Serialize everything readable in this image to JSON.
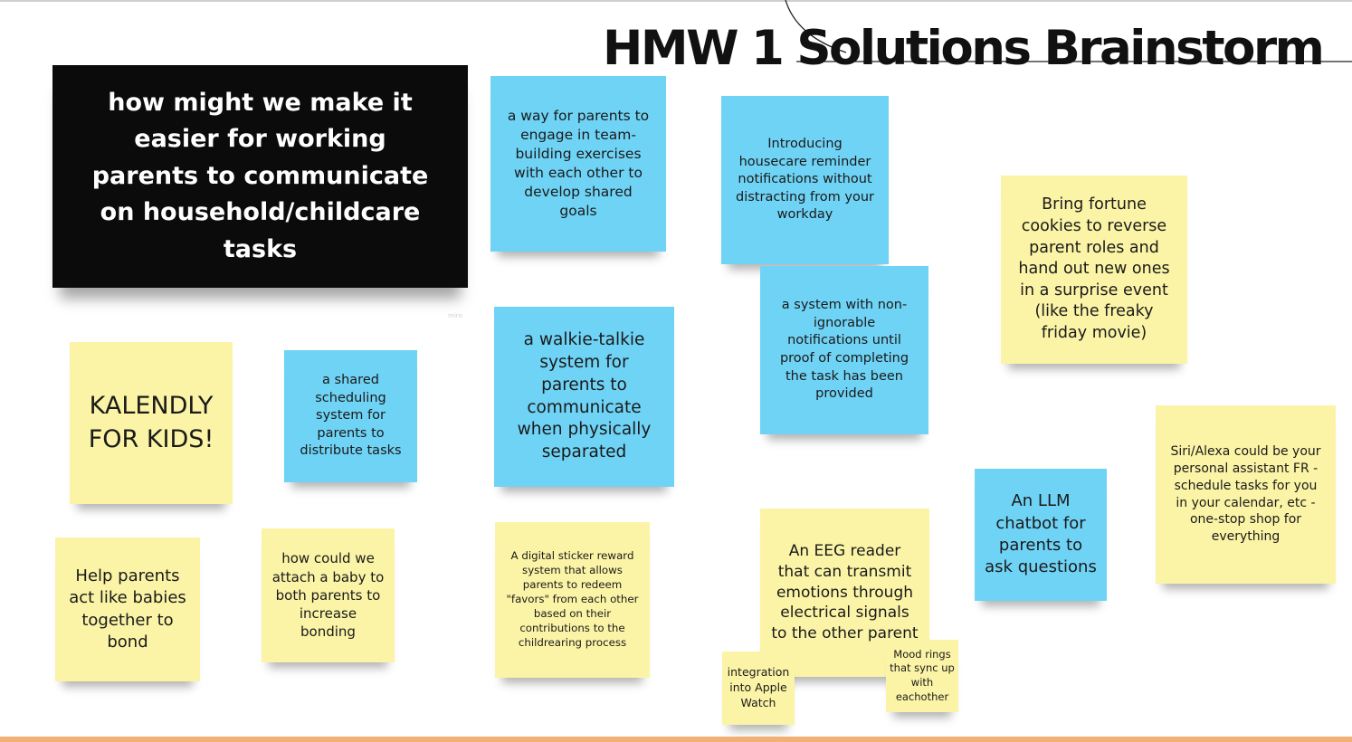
{
  "board": {
    "title": "HMW 1 Solutions Brainstorm",
    "watermark": "miro",
    "colors": {
      "yellow_note": "#fbf4a6",
      "blue_note": "#6fd3f5",
      "prompt_card": "#0b0b0b",
      "accent_bar": "#f2b173"
    }
  },
  "prompt": "how might we make it easier for working parents to communicate on household/childcare tasks",
  "notes": {
    "team_building": "a way for parents to engage in team-building exercises with each other to develop shared goals",
    "housecare_reminders": "Introducing housecare reminder notifications without distracting from your workday",
    "fortune_cookies": "Bring fortune cookies to reverse parent roles and hand out new ones in a surprise event (like the freaky friday movie)",
    "non_ignorable": "a system with non-ignorable notifications until proof of completing the task has been provided",
    "kalendly": "KALENDLY FOR KIDS!",
    "shared_scheduling": "a shared scheduling system for parents to distribute tasks",
    "walkie_talkie": "a walkie-talkie system for parents to communicate when physically separated",
    "siri_alexa": "Siri/Alexa could be your personal assistant FR - schedule tasks for you in your calendar, etc - one-stop shop for everything",
    "llm_chatbot": "An LLM chatbot for parents to ask questions",
    "act_like_babies": "Help parents act like babies together to bond",
    "attach_baby": "how could we attach a baby to both parents to increase bonding",
    "sticker_reward": "A digital sticker reward system that allows parents to redeem \"favors\" from each other based on their contributions to the childrearing process",
    "eeg_reader": "An EEG reader that can transmit emotions through electrical signals to the other parent",
    "apple_watch": "integration into Apple Watch",
    "mood_rings": "Mood rings that sync up with eachother"
  }
}
